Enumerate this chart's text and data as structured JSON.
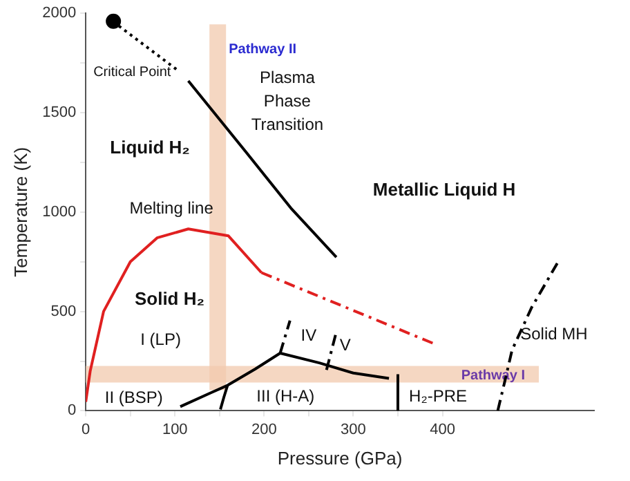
{
  "chart_data": {
    "type": "line",
    "xlabel": "Pressure (GPa)",
    "ylabel": "Temperature (K)",
    "xlim": [
      0,
      570
    ],
    "ylim": [
      0,
      2000
    ],
    "xticks": [
      0,
      {
        "value": 50,
        "label": null
      },
      100,
      {
        "value": 150,
        "label": null
      },
      200,
      {
        "value": 250,
        "label": null
      },
      300,
      {
        "value": 350,
        "label": null
      },
      400
    ],
    "yticks": [
      0,
      {
        "value": 250,
        "label": null
      },
      500,
      {
        "value": 750,
        "label": null
      },
      1000,
      {
        "value": 1250,
        "label": null
      },
      1500,
      {
        "value": 1750,
        "label": null
      },
      2000
    ],
    "grid": false,
    "legend": false,
    "marker": "none",
    "series": [
      {
        "color": "#e02020",
        "line_style": "solid",
        "x": [
          0,
          5,
          20,
          50,
          80,
          115,
          160,
          197
        ],
        "values": [
          45,
          200,
          500,
          750,
          870,
          915,
          880,
          695
        ]
      },
      {
        "color": "#e02020",
        "line_style": "dashed",
        "x": [
          197,
          393
        ],
        "values": [
          695,
          333
        ]
      },
      {
        "color": "#000000",
        "line_style": "solid",
        "x": [
          115,
          180,
          230,
          281
        ],
        "values": [
          1660,
          1300,
          1020,
          773
        ]
      },
      {
        "color": "#000000",
        "line_style": "dotted",
        "x": [
          31,
          104
        ],
        "values": [
          1957,
          1710
        ]
      },
      {
        "color": "#000000",
        "line_style": "solid",
        "x": [
          106,
          140,
          159,
          190,
          218
        ],
        "values": [
          21,
          90,
          128,
          210,
          290
        ]
      },
      {
        "color": "#000000",
        "line_style": "dashed",
        "x": [
          462,
          470,
          478,
          500,
          530
        ],
        "values": [
          0,
          150,
          305,
          520,
          752
        ]
      },
      {
        "color": "#000000",
        "line_style": "solid",
        "x": [
          218,
          262,
          300,
          340
        ],
        "values": [
          290,
          241,
          190,
          163
        ]
      },
      {
        "color": "#000000",
        "line_style": "dashed",
        "x": [
          218,
          229
        ],
        "values": [
          290,
          454
        ]
      },
      {
        "color": "#000000",
        "line_style": "dashed",
        "x": [
          270,
          281
        ],
        "values": [
          206,
          397
        ]
      },
      {
        "color": "#000000",
        "line_style": "solid",
        "x": [
          350,
          350
        ],
        "values": [
          0,
          184
        ]
      },
      {
        "color": "#000000",
        "line_style": "solid",
        "x": [
          151,
          155,
          159
        ],
        "values": [
          7,
          70,
          128
        ]
      },
      {
        "type": "scatter",
        "marker": "circle",
        "color": "#000000",
        "x": [
          31
        ],
        "values": [
          1960
        ]
      }
    ],
    "ref_lines": [
      {
        "axis": "y",
        "value": 184,
        "label": "Pathway I",
        "color": "#f2c9ad"
      },
      {
        "axis": "x",
        "value": 148,
        "label": "Pathway II",
        "color": "#f2c9ad"
      }
    ],
    "annotations": [
      "Critical Point",
      "Plasma\nPhase\nTransition",
      "Liquid H₂",
      "Melting line",
      "Metallic Liquid H",
      "Solid H₂",
      "I (LP)",
      "II (BSP)",
      "III (H-A)",
      "IV",
      "V",
      "H₂-PRE",
      "Solid MH"
    ]
  }
}
